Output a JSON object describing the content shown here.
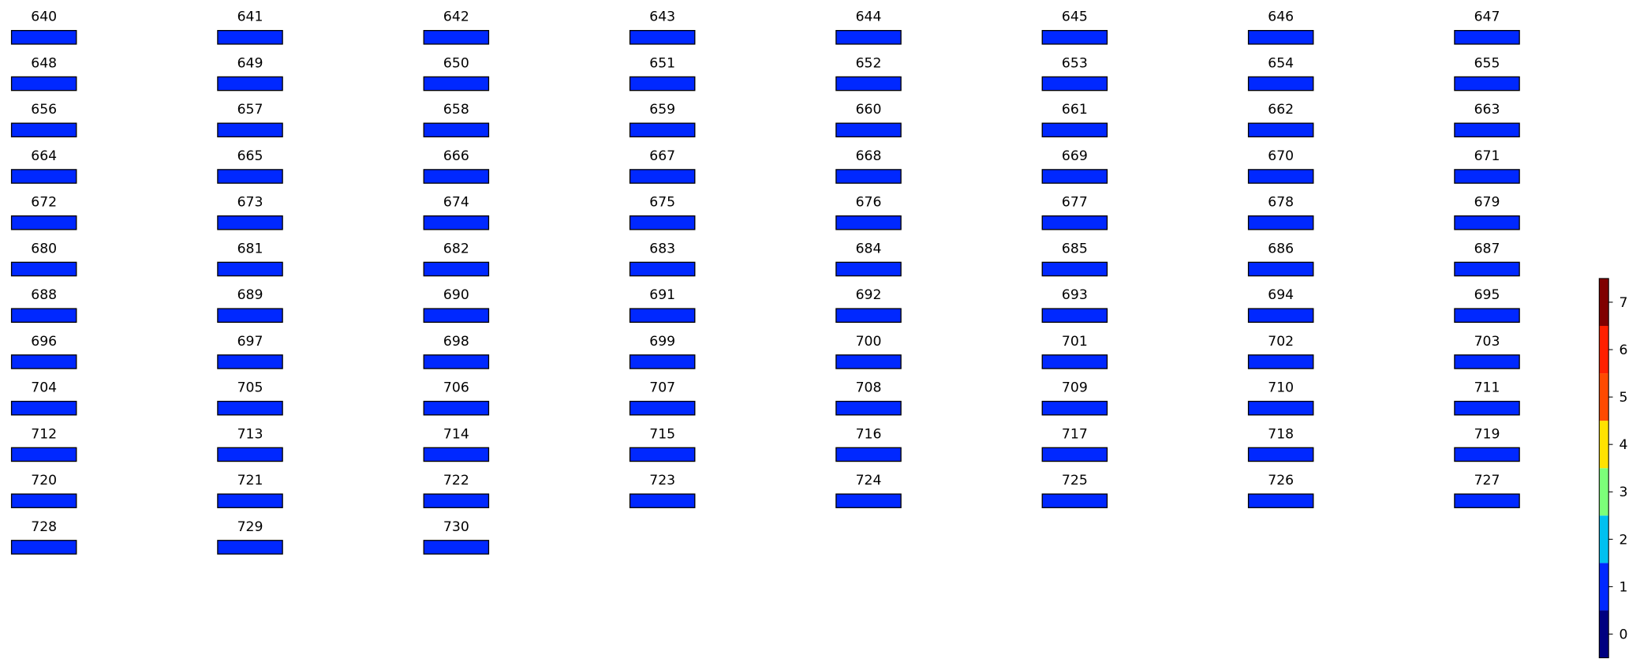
{
  "chart_data": {
    "type": "image-grid",
    "titles": [
      "640",
      "641",
      "642",
      "643",
      "644",
      "645",
      "646",
      "647",
      "648",
      "649",
      "650",
      "651",
      "652",
      "653",
      "654",
      "655",
      "656",
      "657",
      "658",
      "659",
      "660",
      "661",
      "662",
      "663",
      "664",
      "665",
      "666",
      "667",
      "668",
      "669",
      "670",
      "671",
      "672",
      "673",
      "674",
      "675",
      "676",
      "677",
      "678",
      "679",
      "680",
      "681",
      "682",
      "683",
      "684",
      "685",
      "686",
      "687",
      "688",
      "689",
      "690",
      "691",
      "692",
      "693",
      "694",
      "695",
      "696",
      "697",
      "698",
      "699",
      "700",
      "701",
      "702",
      "703",
      "704",
      "705",
      "706",
      "707",
      "708",
      "709",
      "710",
      "711",
      "712",
      "713",
      "714",
      "715",
      "716",
      "717",
      "718",
      "719",
      "720",
      "721",
      "722",
      "723",
      "724",
      "725",
      "726",
      "727",
      "728",
      "729",
      "730"
    ],
    "columns": 8,
    "colorbar": {
      "colors": [
        "#000080",
        "#0028ff",
        "#00c0f0",
        "#7cff79",
        "#ffe200",
        "#ff4a00",
        "#ff2000",
        "#800000"
      ],
      "ylim": [
        -0.5,
        7.5
      ],
      "yticks": [
        0,
        1,
        2,
        3,
        4,
        5,
        6,
        7
      ]
    }
  }
}
